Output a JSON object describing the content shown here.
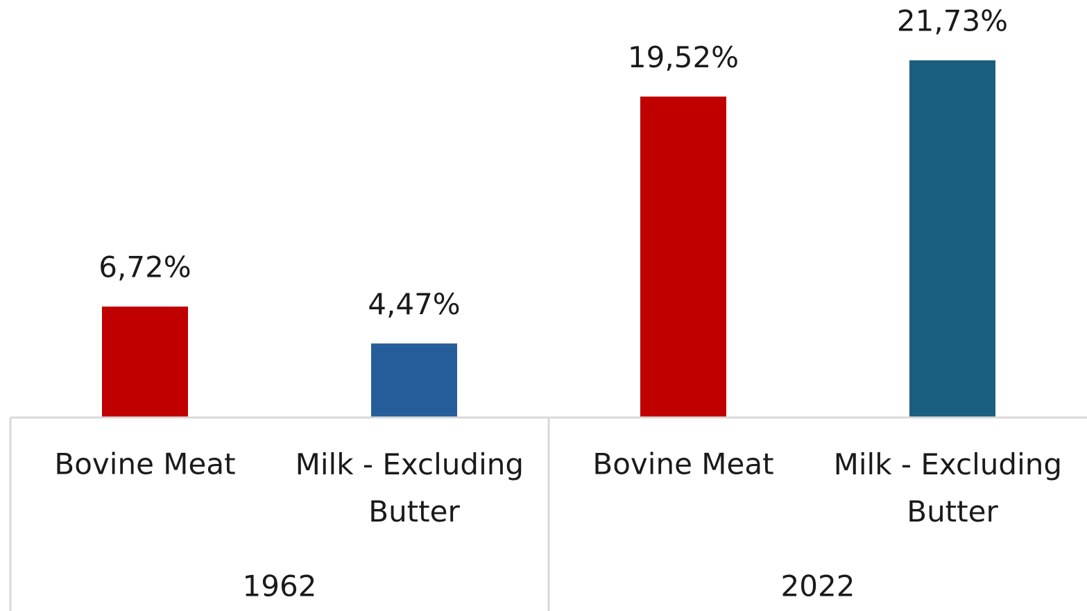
{
  "chart_data": {
    "type": "bar",
    "categories": [
      "Bovine Meat",
      "Milk - Excluding Butter",
      "Bovine Meat",
      "Milk - Excluding Butter"
    ],
    "values": [
      6.72,
      4.47,
      19.52,
      21.73
    ],
    "value_labels": [
      "6,72%",
      "4,47%",
      "19,52%",
      "21,73%"
    ],
    "colors": [
      "#c00000",
      "#255e9a",
      "#c00000",
      "#1a5e80"
    ],
    "groups": [
      {
        "label": "1962",
        "categories": [
          "Bovine Meat",
          "Milk - Excluding Butter"
        ]
      },
      {
        "label": "2022",
        "categories": [
          "Bovine Meat",
          "Milk - Excluding Butter"
        ]
      }
    ]
  }
}
